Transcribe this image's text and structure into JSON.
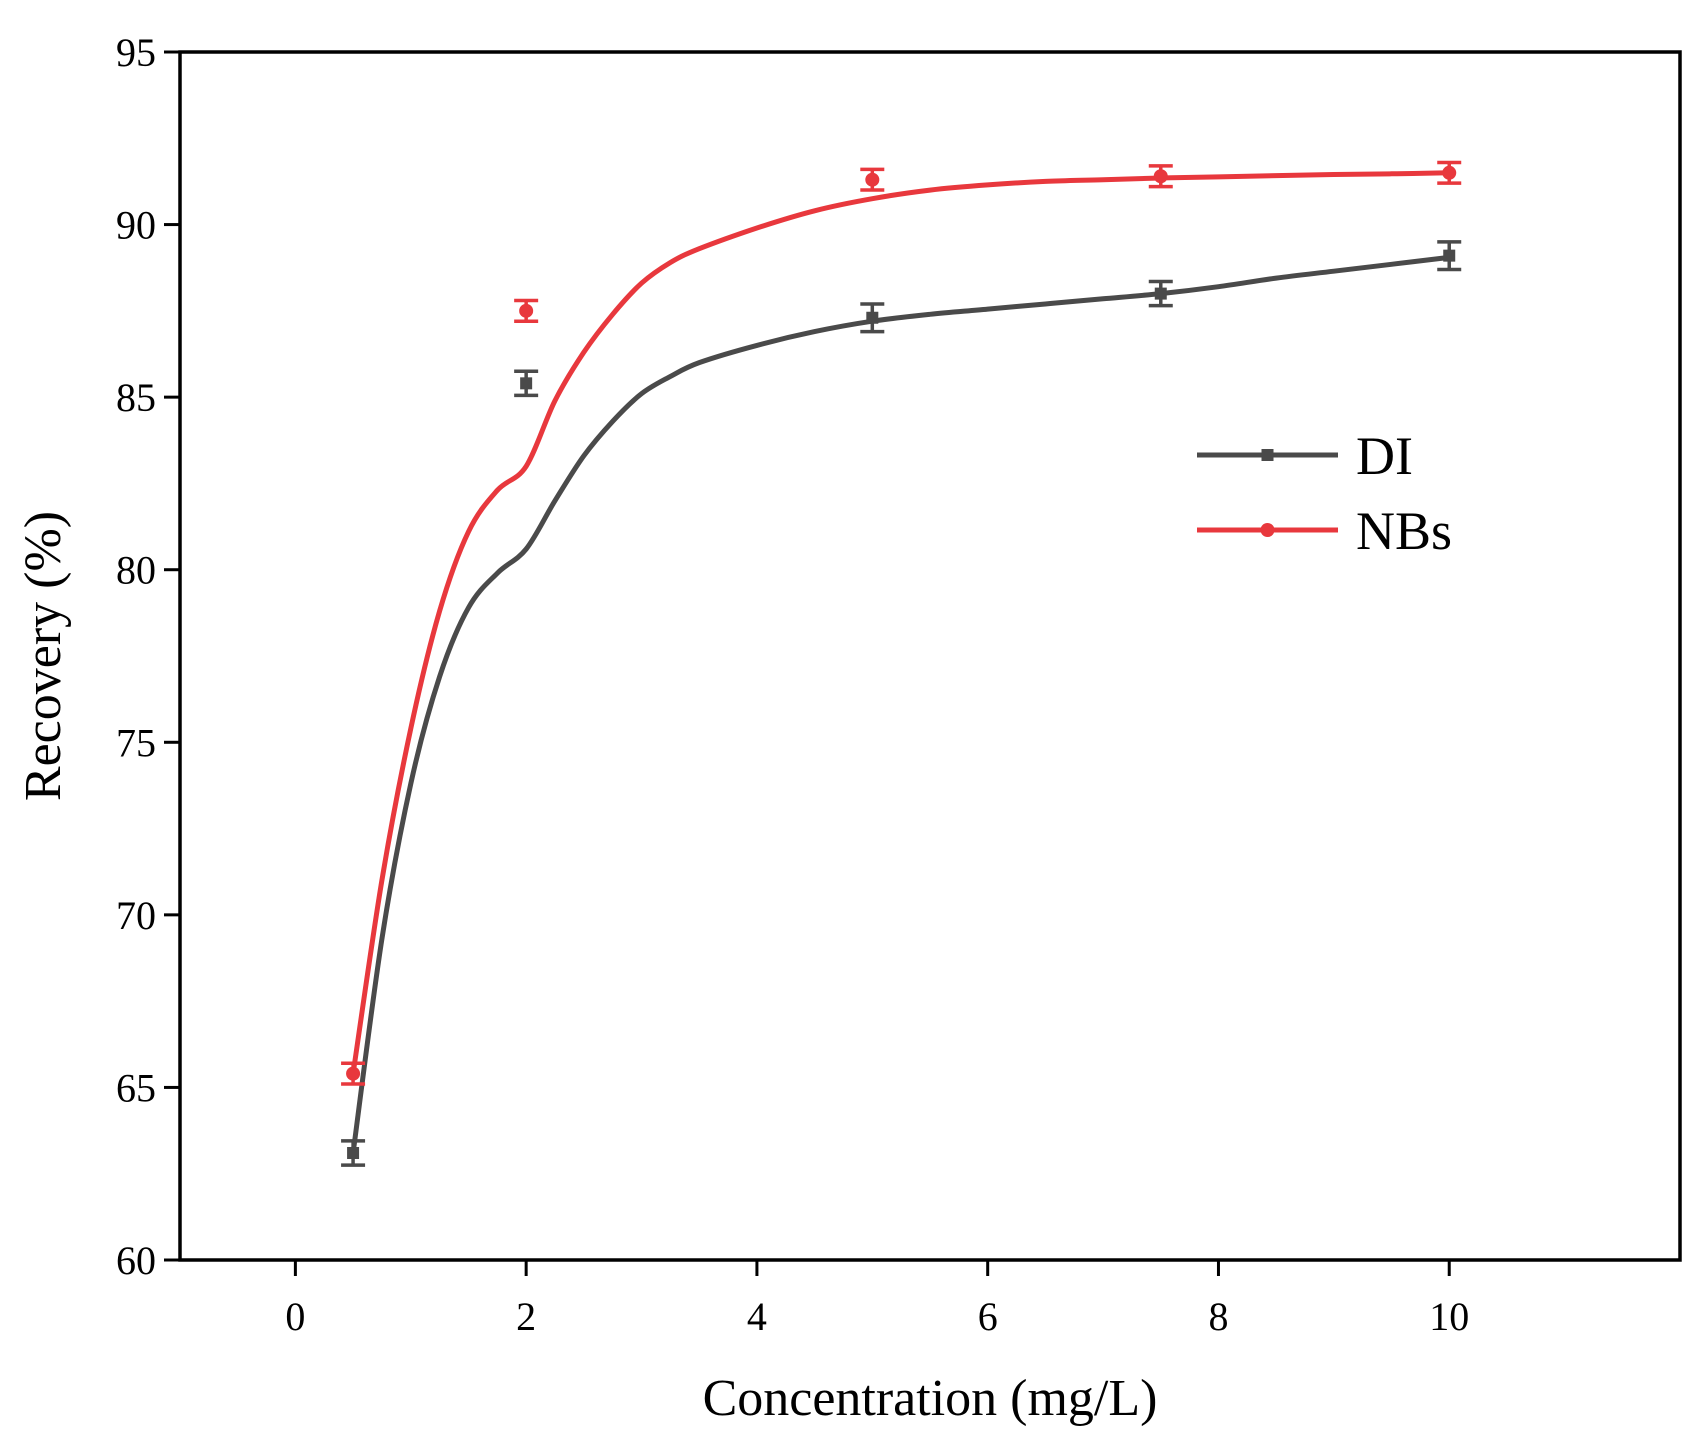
{
  "chart_data": {
    "type": "scatter",
    "title": "",
    "xlabel": "Concentration (mg/L)",
    "ylabel": "Recovery (%)",
    "xlim": [
      -1,
      12
    ],
    "ylim": [
      60,
      95
    ],
    "xticks": [
      0,
      2,
      4,
      6,
      8,
      10
    ],
    "yticks": [
      60,
      65,
      70,
      75,
      80,
      85,
      90,
      95
    ],
    "xtick_labels": [
      "0",
      "2",
      "4",
      "6",
      "8",
      "10"
    ],
    "ytick_labels": [
      "60",
      "65",
      "70",
      "75",
      "80",
      "85",
      "90",
      "95"
    ],
    "grid": false,
    "legend_position": "right",
    "series": [
      {
        "name": "DI",
        "color": "#4a4a4a",
        "marker": "square",
        "x": [
          0.5,
          2,
          5,
          7.5,
          10
        ],
        "y": [
          63.1,
          85.4,
          87.3,
          88.0,
          89.1
        ],
        "error": [
          0.35,
          0.35,
          0.4,
          0.35,
          0.4
        ],
        "fit_curve": {
          "x": [
            0.5,
            0.75,
            1.0,
            1.25,
            1.5,
            1.75,
            2.0,
            2.25,
            2.5,
            2.75,
            3.0,
            3.25,
            3.5,
            4.0,
            4.5,
            5.0,
            5.5,
            6.0,
            6.5,
            7.0,
            7.5,
            8.0,
            8.5,
            9.0,
            9.5,
            10.0
          ],
          "y": [
            63.1,
            69.3,
            73.8,
            76.9,
            78.9,
            79.9,
            80.6,
            82.0,
            83.3,
            84.3,
            85.1,
            85.6,
            86.0,
            86.5,
            86.9,
            87.2,
            87.4,
            87.55,
            87.7,
            87.85,
            88.0,
            88.2,
            88.45,
            88.65,
            88.85,
            89.05
          ]
        }
      },
      {
        "name": "NBs",
        "color": "#e8383d",
        "marker": "circle",
        "x": [
          0.5,
          2,
          5,
          7.5,
          10
        ],
        "y": [
          65.4,
          87.5,
          91.3,
          91.4,
          91.5
        ],
        "error": [
          0.3,
          0.3,
          0.3,
          0.3,
          0.3
        ],
        "fit_curve": {
          "x": [
            0.5,
            0.75,
            1.0,
            1.25,
            1.5,
            1.75,
            2.0,
            2.25,
            2.5,
            2.75,
            3.0,
            3.25,
            3.5,
            4.0,
            4.5,
            5.0,
            5.5,
            6.0,
            6.5,
            7.0,
            7.5,
            8.0,
            8.5,
            9.0,
            9.5,
            10.0
          ],
          "y": [
            65.4,
            71.0,
            75.4,
            78.8,
            81.1,
            82.3,
            83.0,
            84.9,
            86.3,
            87.4,
            88.3,
            88.9,
            89.3,
            89.9,
            90.4,
            90.75,
            91.0,
            91.15,
            91.25,
            91.3,
            91.35,
            91.38,
            91.42,
            91.45,
            91.47,
            91.5
          ]
        }
      }
    ]
  }
}
